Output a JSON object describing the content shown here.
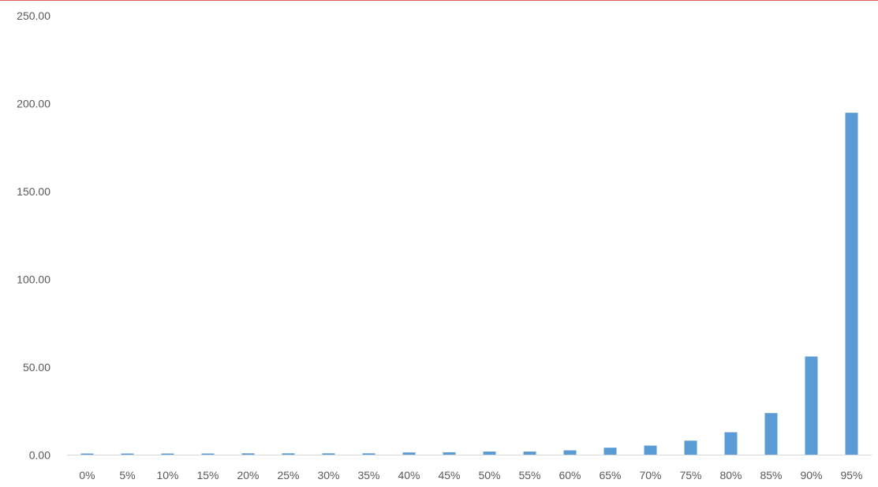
{
  "chart_data": {
    "type": "bar",
    "title": "",
    "xlabel": "",
    "ylabel": "",
    "categories": [
      "0%",
      "5%",
      "10%",
      "15%",
      "20%",
      "25%",
      "30%",
      "35%",
      "40%",
      "45%",
      "50%",
      "55%",
      "60%",
      "65%",
      "70%",
      "75%",
      "80%",
      "85%",
      "90%",
      "95%"
    ],
    "values": [
      0.9,
      0.9,
      0.9,
      0.9,
      1.0,
      1.0,
      1.0,
      1.0,
      1.5,
      1.6,
      2.0,
      2.0,
      2.7,
      4.2,
      5.4,
      8.2,
      13.0,
      23.9,
      56.1,
      194.8
    ],
    "ylim": [
      0,
      250
    ],
    "yticks": [
      "0.00",
      "50.00",
      "100.00",
      "150.00",
      "200.00",
      "250.00"
    ],
    "grid": false,
    "legend": "none",
    "bar_color": "#5b9bd5",
    "axis_color": "#d9d9d9"
  }
}
